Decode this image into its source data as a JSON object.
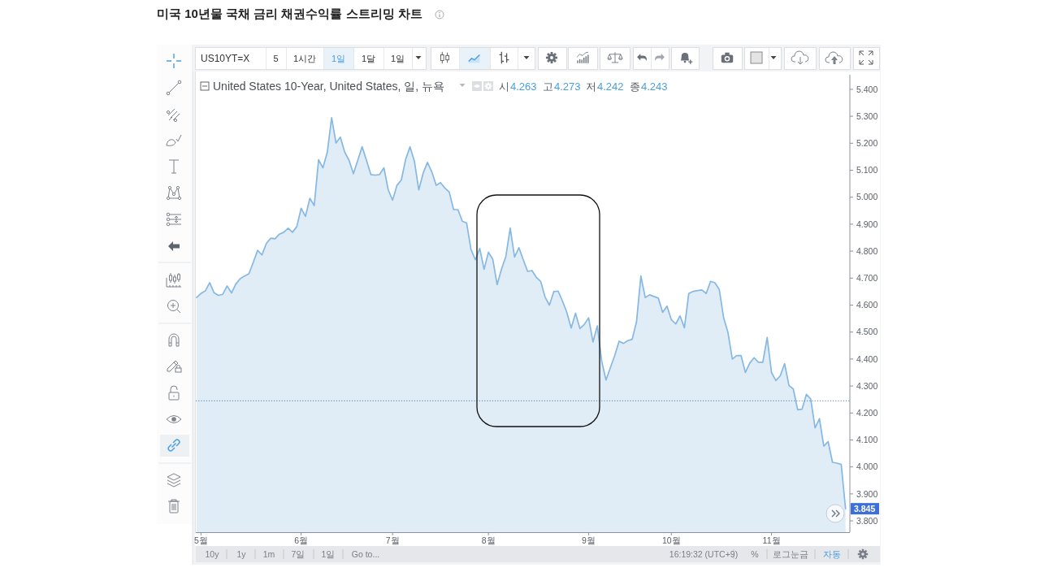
{
  "chart_data": {
    "type": "area",
    "title": "미국 10년물 국채 금리 채권수익률 스트리밍 차트",
    "subtitle": "United States 10-Year, United States, 일, 뉴욕",
    "annotations": [
      "시4.263",
      "고4.273",
      "저4.242",
      "종4.243",
      "US10YT=X",
      "5",
      "1시간",
      "1일",
      "1달",
      "1일",
      "10y",
      "1y",
      "1m",
      "7일",
      "1일",
      "Go to...",
      "16:19:32 (UTC+9)",
      "%",
      "로그눈금",
      "자동"
    ],
    "categories": [
      null,
      "5월",
      null,
      null,
      null,
      null,
      null,
      null,
      null,
      null,
      null,
      null,
      null,
      null,
      null,
      null,
      null,
      null,
      null,
      null,
      null,
      null,
      null,
      null,
      "6월",
      null,
      null,
      null,
      null,
      null,
      null,
      null,
      null,
      null,
      null,
      null,
      null,
      null,
      null,
      null,
      null,
      null,
      null,
      null,
      null,
      "7월",
      null,
      null,
      null,
      null,
      null,
      null,
      null,
      null,
      null,
      null,
      null,
      null,
      null,
      null,
      null,
      null,
      null,
      null,
      null,
      null,
      null,
      "8월",
      null,
      null,
      null,
      null,
      null,
      null,
      null,
      null,
      null,
      null,
      null,
      null,
      null,
      null,
      null,
      null,
      null,
      null,
      null,
      null,
      null,
      null,
      "9월",
      null,
      null,
      null,
      null,
      null,
      null,
      null,
      null,
      null,
      null,
      null,
      null,
      null,
      null,
      null,
      null,
      null,
      null,
      "10월",
      null,
      null,
      null,
      null,
      null,
      null,
      null,
      null,
      null,
      null,
      null,
      null,
      null,
      null,
      null,
      null,
      null,
      null,
      null,
      null,
      null,
      null,
      "11월",
      null,
      null,
      null,
      null,
      null,
      null,
      null,
      null,
      null,
      null,
      null,
      null,
      null,
      null,
      null,
      null,
      null
    ],
    "series": [
      {
        "color": "#86b8e2",
        "values": [
          4.628,
          4.643,
          4.653,
          4.683,
          4.646,
          4.636,
          4.64,
          4.671,
          4.645,
          4.678,
          4.698,
          4.708,
          4.716,
          4.758,
          4.803,
          4.786,
          4.828,
          4.848,
          4.846,
          4.863,
          4.87,
          4.885,
          4.87,
          4.891,
          4.959,
          4.929,
          4.996,
          4.969,
          5.139,
          5.109,
          5.167,
          5.295,
          5.201,
          5.223,
          5.167,
          5.137,
          5.087,
          5.137,
          5.187,
          5.137,
          5.084,
          5.082,
          5.084,
          5.109,
          5.027,
          4.989,
          5.044,
          5.064,
          5.141,
          5.187,
          5.134,
          5.027,
          5.089,
          5.129,
          5.094,
          5.044,
          5.054,
          5.034,
          5.019,
          4.954,
          4.954,
          4.911,
          4.904,
          4.806,
          4.768,
          4.81,
          4.733,
          4.796,
          4.77,
          4.676,
          4.733,
          4.78,
          4.886,
          4.778,
          4.813,
          4.768,
          4.725,
          4.728,
          4.703,
          4.688,
          4.63,
          4.6,
          4.65,
          4.652,
          4.615,
          4.573,
          4.515,
          4.57,
          4.513,
          4.528,
          4.553,
          4.463,
          4.523,
          4.393,
          4.322,
          4.368,
          4.413,
          4.466,
          4.458,
          4.468,
          4.473,
          4.538,
          4.708,
          4.628,
          4.638,
          4.632,
          4.626,
          4.573,
          4.596,
          4.546,
          4.53,
          4.56,
          4.516,
          4.643,
          4.651,
          4.654,
          4.656,
          4.643,
          4.688,
          4.683,
          4.658,
          4.553,
          4.498,
          4.4,
          4.413,
          4.413,
          4.35,
          4.385,
          4.405,
          4.388,
          4.388,
          4.48,
          4.35,
          4.32,
          4.338,
          4.383,
          4.302,
          4.289,
          4.212,
          4.214,
          4.269,
          4.252,
          4.145,
          4.179,
          4.077,
          4.094,
          4.017,
          4.014,
          4.009,
          3.845
        ],
        "value_labels": [
          null,
          null,
          null,
          null,
          null,
          null,
          null,
          null,
          null,
          null,
          null,
          null,
          null,
          null,
          null,
          null,
          null,
          null,
          null,
          null,
          null,
          null,
          null,
          null,
          null,
          null,
          null,
          null,
          null,
          null,
          null,
          null,
          null,
          null,
          null,
          null,
          null,
          null,
          null,
          null,
          null,
          null,
          null,
          null,
          null,
          null,
          null,
          null,
          null,
          null,
          null,
          null,
          null,
          null,
          null,
          null,
          null,
          null,
          null,
          null,
          null,
          null,
          null,
          null,
          null,
          null,
          null,
          null,
          null,
          null,
          null,
          null,
          null,
          null,
          null,
          null,
          null,
          null,
          null,
          null,
          null,
          null,
          null,
          null,
          null,
          null,
          null,
          null,
          null,
          null,
          null,
          null,
          null,
          null,
          null,
          null,
          null,
          null,
          null,
          null,
          null,
          null,
          null,
          null,
          null,
          null,
          null,
          null,
          null,
          null,
          null,
          null,
          null,
          null,
          null,
          null,
          null,
          null,
          null,
          null,
          null,
          null,
          null,
          null,
          null,
          null,
          null,
          null,
          null,
          null,
          null,
          null,
          null,
          null,
          null,
          null,
          null,
          null,
          null,
          null,
          null,
          null,
          null,
          null,
          null,
          null,
          null,
          null,
          null,
          "3.845"
        ]
      }
    ],
    "ylim": [
      3.758,
      5.454
    ],
    "yticks": [
      {
        "value": 3.8,
        "label": "3.800"
      },
      {
        "value": 3.9,
        "label": "3.900"
      },
      {
        "value": 4.0,
        "label": "4.000"
      },
      {
        "value": 4.1,
        "label": "4.100"
      },
      {
        "value": 4.2,
        "label": "4.200"
      },
      {
        "value": 4.3,
        "label": "4.300"
      },
      {
        "value": 4.4,
        "label": "4.400"
      },
      {
        "value": 4.5,
        "label": "4.500"
      },
      {
        "value": 4.6,
        "label": "4.600"
      },
      {
        "value": 4.7,
        "label": "4.700"
      },
      {
        "value": 4.8,
        "label": "4.800"
      },
      {
        "value": 4.9,
        "label": "4.900"
      },
      {
        "value": 5.0,
        "label": "5.000"
      },
      {
        "value": 5.1,
        "label": "5.100"
      },
      {
        "value": 5.2,
        "label": "5.200"
      },
      {
        "value": 5.3,
        "label": "5.300"
      },
      {
        "value": 5.4,
        "label": "5.400"
      }
    ],
    "ref_lines": [
      {
        "axis": "y",
        "value": 4.245,
        "line_style": "dotted",
        "color": "#4f86c0"
      }
    ]
  }
}
